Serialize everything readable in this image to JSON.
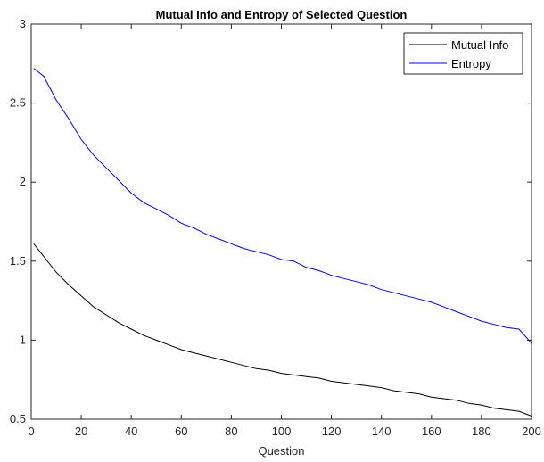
{
  "chart_data": {
    "type": "line",
    "title": "Mutual Info and Entropy of Selected Question",
    "xlabel": "Question",
    "ylabel": "",
    "xlim": [
      0,
      200
    ],
    "ylim": [
      0.5,
      3
    ],
    "xticks": [
      0,
      20,
      40,
      60,
      80,
      100,
      120,
      140,
      160,
      180,
      200
    ],
    "yticks": [
      0.5,
      1,
      1.5,
      2,
      2.5,
      3
    ],
    "xtick_labels": [
      "0",
      "20",
      "40",
      "60",
      "80",
      "100",
      "120",
      "140",
      "160",
      "180",
      "200"
    ],
    "ytick_labels": [
      "0.5",
      "1",
      "1.5",
      "2",
      "2.5",
      "3"
    ],
    "grid": false,
    "legend_position": "top-right",
    "x": [
      1,
      5,
      10,
      15,
      20,
      25,
      30,
      35,
      40,
      45,
      50,
      55,
      60,
      65,
      70,
      75,
      80,
      85,
      90,
      95,
      100,
      105,
      110,
      115,
      120,
      125,
      130,
      135,
      140,
      145,
      150,
      155,
      160,
      165,
      170,
      175,
      180,
      185,
      190,
      195,
      200
    ],
    "series": [
      {
        "name": "Mutual Info",
        "color": "#000000",
        "values": [
          1.61,
          1.53,
          1.43,
          1.35,
          1.28,
          1.21,
          1.16,
          1.11,
          1.07,
          1.03,
          1.0,
          0.97,
          0.94,
          0.92,
          0.9,
          0.88,
          0.86,
          0.84,
          0.82,
          0.81,
          0.79,
          0.78,
          0.77,
          0.76,
          0.74,
          0.73,
          0.72,
          0.71,
          0.7,
          0.68,
          0.67,
          0.66,
          0.64,
          0.63,
          0.62,
          0.6,
          0.59,
          0.57,
          0.56,
          0.55,
          0.52
        ]
      },
      {
        "name": "Entropy",
        "color": "#0000ff",
        "values": [
          2.72,
          2.67,
          2.52,
          2.4,
          2.27,
          2.17,
          2.09,
          2.01,
          1.93,
          1.87,
          1.83,
          1.79,
          1.74,
          1.71,
          1.67,
          1.64,
          1.61,
          1.58,
          1.56,
          1.54,
          1.51,
          1.5,
          1.46,
          1.44,
          1.41,
          1.39,
          1.37,
          1.35,
          1.32,
          1.3,
          1.28,
          1.26,
          1.24,
          1.21,
          1.18,
          1.15,
          1.12,
          1.1,
          1.08,
          1.07,
          0.98
        ]
      }
    ]
  }
}
